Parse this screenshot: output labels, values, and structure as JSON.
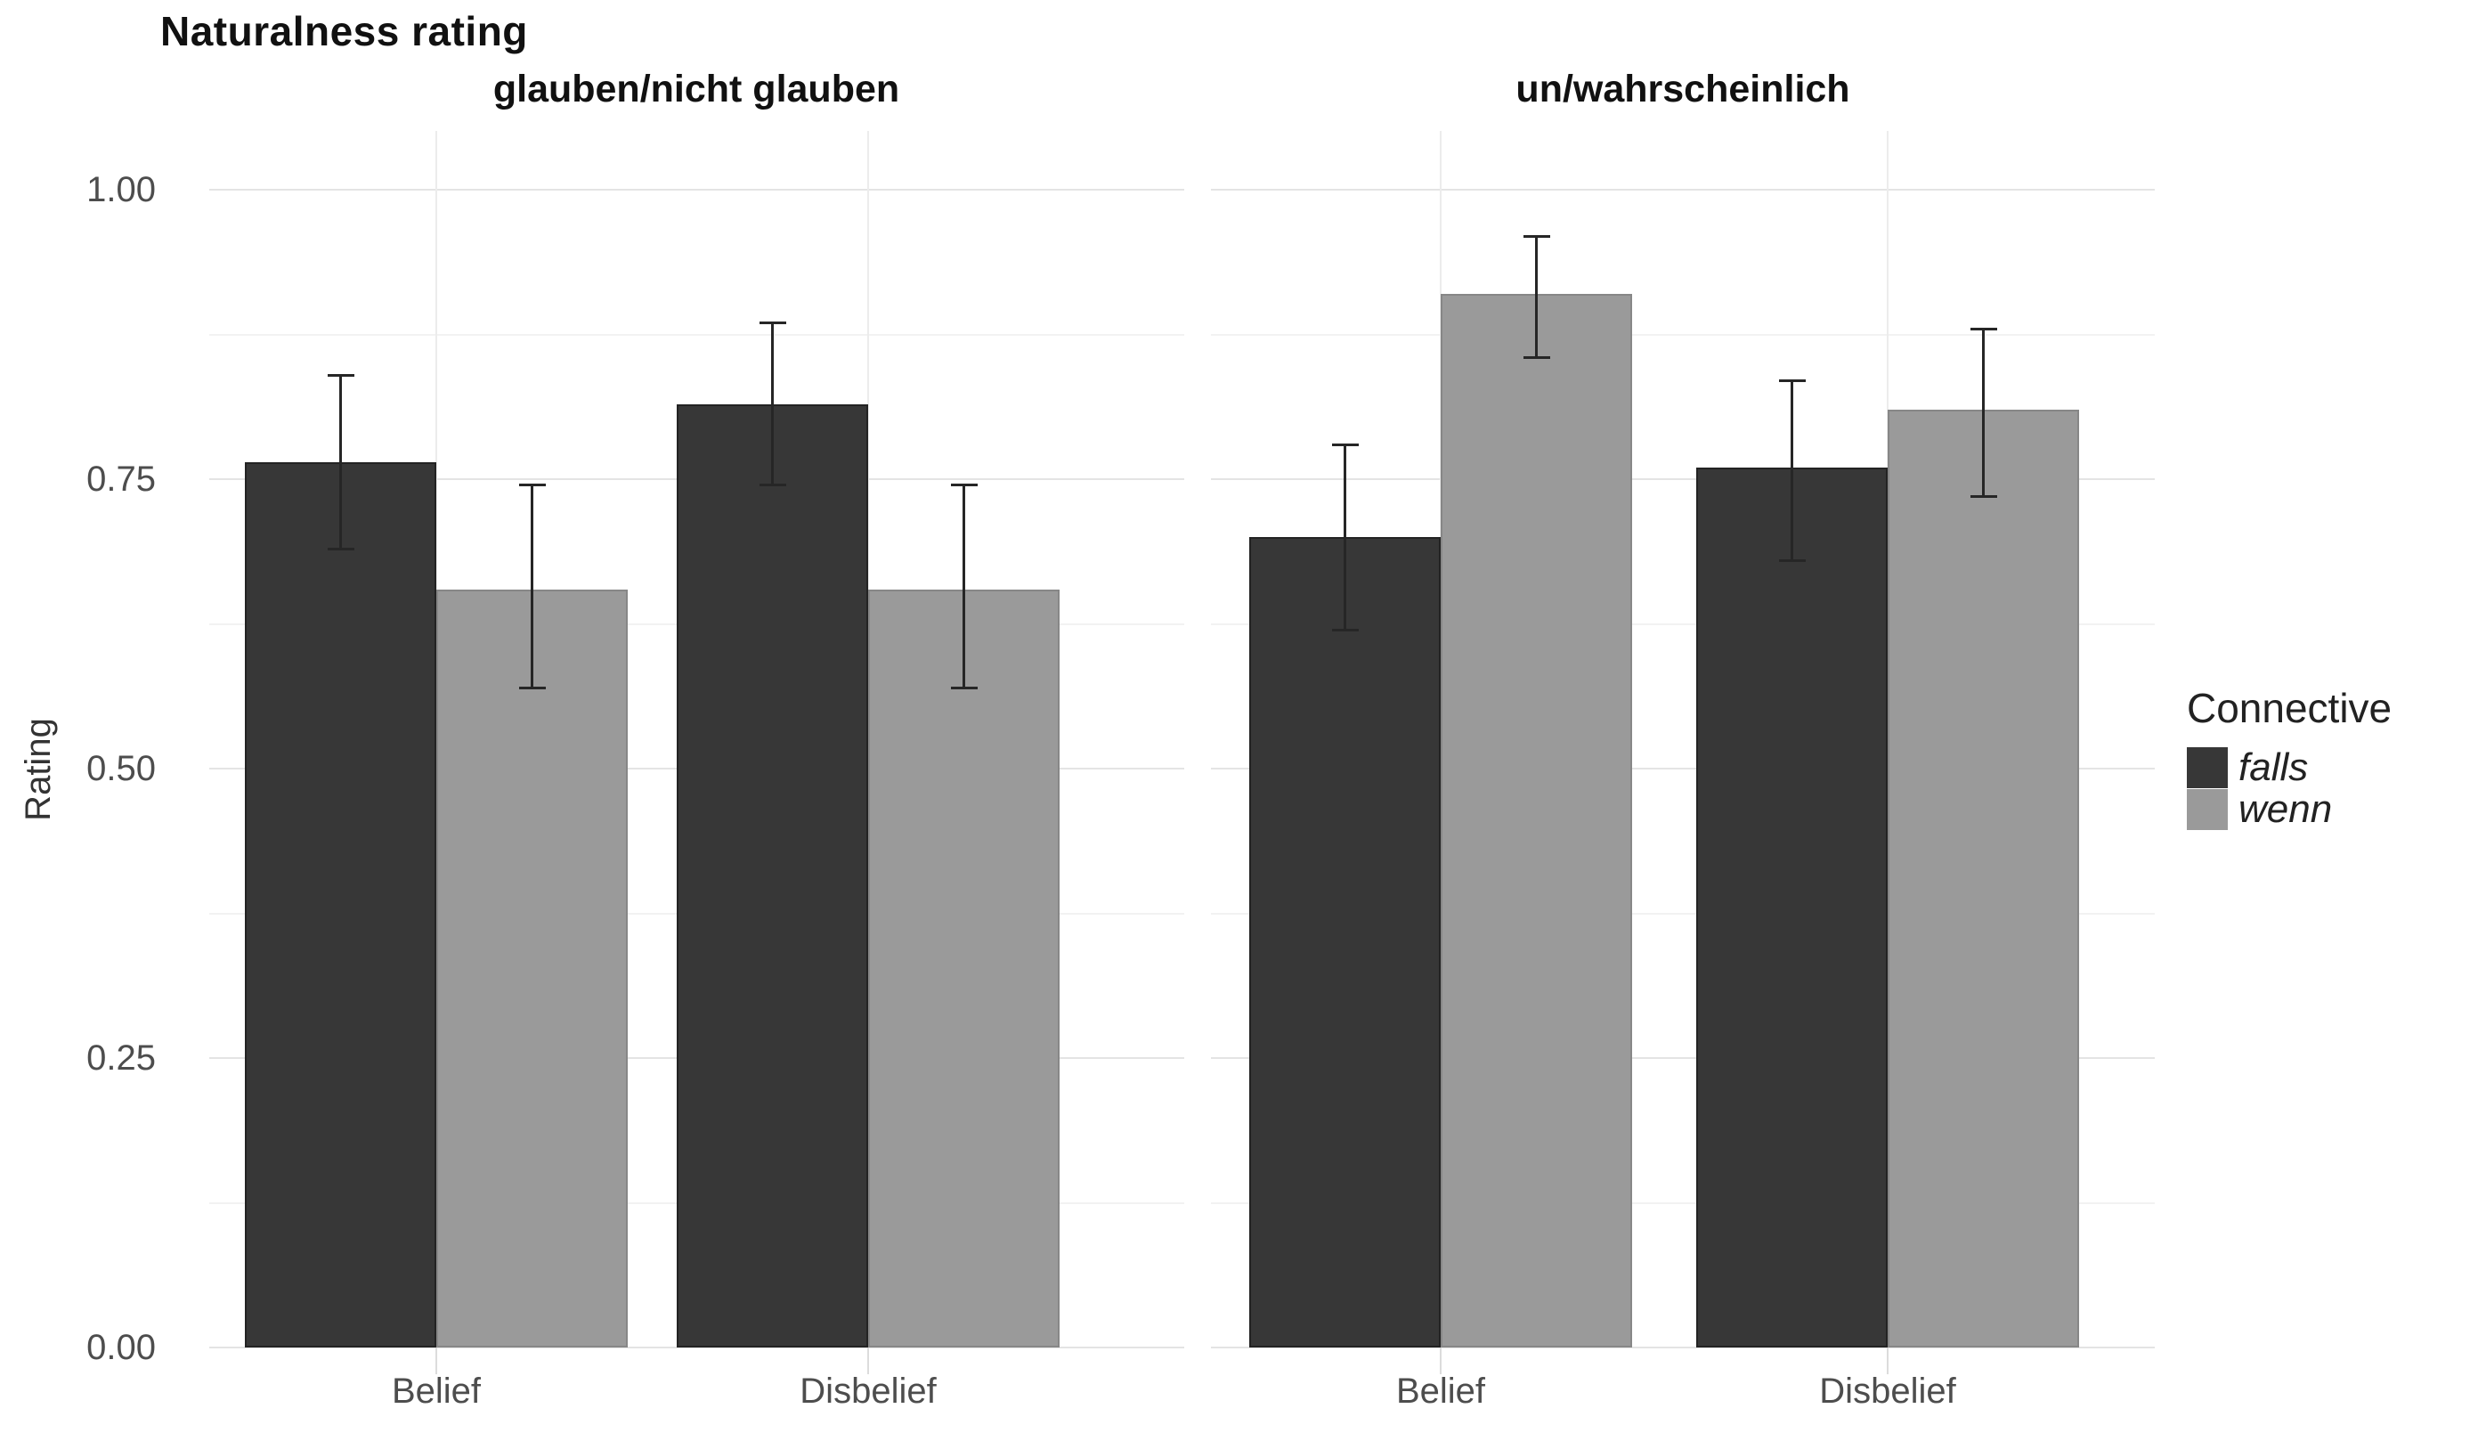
{
  "title": "Naturalness rating",
  "y_axis": {
    "label": "Rating",
    "tick_labels": [
      "1.00",
      "0.75",
      "0.50",
      "0.25",
      "0.00"
    ],
    "tick_values": [
      1.0,
      0.75,
      0.5,
      0.25,
      0.0
    ],
    "minor_tick_values": [
      0.875,
      0.625,
      0.375,
      0.125
    ]
  },
  "legend": {
    "title": "Connective",
    "items": [
      {
        "label": "falls",
        "color": "#373737"
      },
      {
        "label": "wenn",
        "color": "#9a9a9a"
      }
    ]
  },
  "colors": {
    "falls_bar": "#373737",
    "wenn_bar": "#9a9a9a",
    "errorbar": "#262626",
    "grid_major": "#e4e4e4",
    "grid_minor": "#f2f2f2",
    "background": "#ffffff"
  },
  "chart_data": {
    "type": "bar",
    "title": "Naturalness rating",
    "xlabel": "",
    "ylabel": "Rating",
    "ylim": [
      0,
      1
    ],
    "yticks": [
      0.0,
      0.25,
      0.5,
      0.75,
      1.0
    ],
    "grid": true,
    "legend_title": "Connective",
    "legend_position": "right",
    "categories": [
      "Belief",
      "Disbelief"
    ],
    "series_names": [
      "falls",
      "wenn"
    ],
    "facets": [
      {
        "label": "glauben/nicht glauben",
        "groups": [
          {
            "category": "Belief",
            "bars": [
              {
                "series": "falls",
                "value": 0.765,
                "err_low": 0.69,
                "err_high": 0.84
              },
              {
                "series": "wenn",
                "value": 0.655,
                "err_low": 0.57,
                "err_high": 0.745
              }
            ]
          },
          {
            "category": "Disbelief",
            "bars": [
              {
                "series": "falls",
                "value": 0.815,
                "err_low": 0.745,
                "err_high": 0.885
              },
              {
                "series": "wenn",
                "value": 0.655,
                "err_low": 0.57,
                "err_high": 0.745
              }
            ]
          }
        ]
      },
      {
        "label": "un/wahrscheinlich",
        "groups": [
          {
            "category": "Belief",
            "bars": [
              {
                "series": "falls",
                "value": 0.7,
                "err_low": 0.62,
                "err_high": 0.78
              },
              {
                "series": "wenn",
                "value": 0.91,
                "err_low": 0.855,
                "err_high": 0.96
              }
            ]
          },
          {
            "category": "Disbelief",
            "bars": [
              {
                "series": "falls",
                "value": 0.76,
                "err_low": 0.68,
                "err_high": 0.835
              },
              {
                "series": "wenn",
                "value": 0.81,
                "err_low": 0.735,
                "err_high": 0.88
              }
            ]
          }
        ]
      }
    ]
  }
}
